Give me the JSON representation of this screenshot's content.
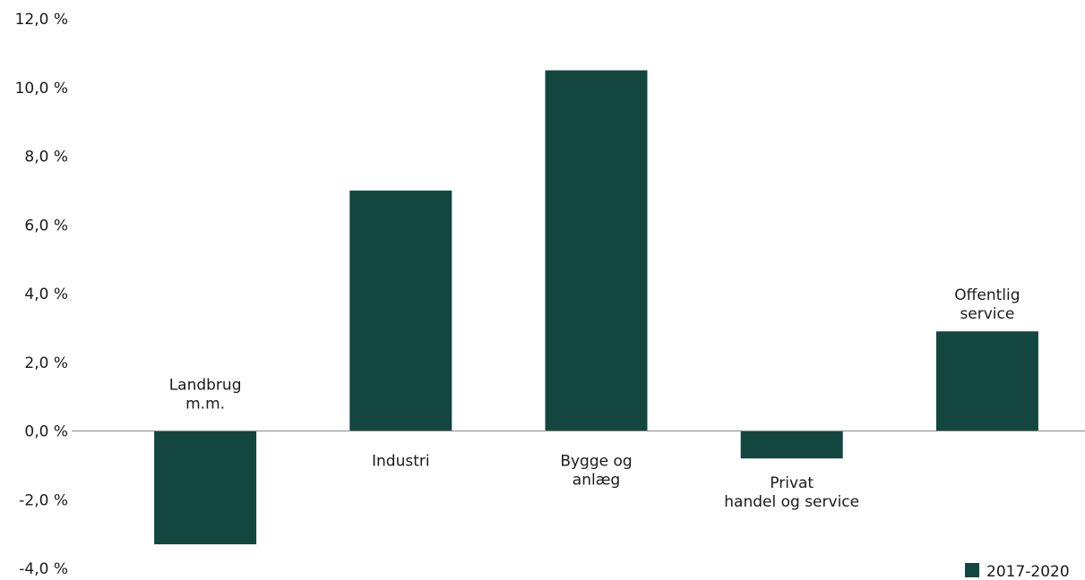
{
  "chart_data": {
    "type": "bar",
    "categories": [
      [
        "Landbrug",
        "m.m."
      ],
      [
        "Industri"
      ],
      [
        "Bygge og",
        "anlæg"
      ],
      [
        "Privat",
        "handel og service"
      ],
      [
        "Offentlig",
        "service"
      ]
    ],
    "series": [
      {
        "name": "2017-2020",
        "values": [
          -3.3,
          7.0,
          10.5,
          -0.8,
          2.9
        ],
        "color": "#12463e"
      }
    ],
    "ylim": [
      -4,
      12
    ],
    "yticks": [
      12,
      10,
      8,
      6,
      4,
      2,
      0,
      -2,
      -4
    ],
    "ytick_labels": [
      "12,0 %",
      "10,0 %",
      "8,0 %",
      "6,0 %",
      "4,0 %",
      "2,0 %",
      "0,0 %",
      "-2,0 %",
      "-4,0 %"
    ],
    "legend": {
      "position": "bottom-right",
      "label": "2017-2020"
    },
    "grid": false
  }
}
